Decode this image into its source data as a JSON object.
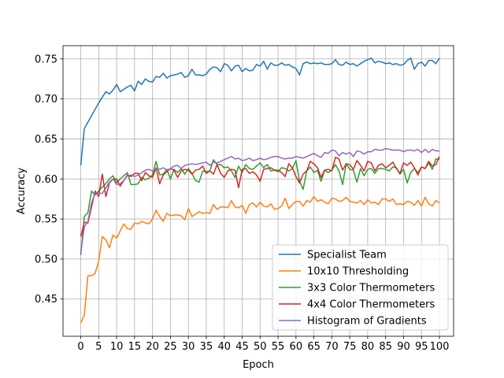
{
  "chart_data": {
    "type": "line",
    "title": "",
    "xlabel": "Epoch",
    "ylabel": "Accuracy",
    "xlim": [
      -4.95,
      103.95
    ],
    "ylim": [
      0.4035,
      0.7665
    ],
    "xticks": [
      0,
      5,
      10,
      15,
      20,
      25,
      30,
      35,
      40,
      45,
      50,
      55,
      60,
      65,
      70,
      75,
      80,
      85,
      90,
      95,
      100
    ],
    "yticks": [
      0.45,
      0.5,
      0.55,
      0.6,
      0.65,
      0.7,
      0.75
    ],
    "ytick_labels": [
      "0.45",
      "0.50",
      "0.55",
      "0.60",
      "0.65",
      "0.70",
      "0.75"
    ],
    "grid": true,
    "legend_position": "lower-right",
    "series": [
      {
        "name": "Specialist Team",
        "color": "#1f77b4",
        "values": [
          0.617,
          0.663,
          0.671,
          0.679,
          0.687,
          0.695,
          0.702,
          0.709,
          0.706,
          0.711,
          0.718,
          0.709,
          0.712,
          0.715,
          0.717,
          0.71,
          0.722,
          0.718,
          0.725,
          0.722,
          0.721,
          0.728,
          0.727,
          0.732,
          0.726,
          0.729,
          0.73,
          0.731,
          0.733,
          0.727,
          0.729,
          0.737,
          0.73,
          0.73,
          0.729,
          0.731,
          0.737,
          0.74,
          0.739,
          0.734,
          0.744,
          0.742,
          0.735,
          0.741,
          0.742,
          0.734,
          0.738,
          0.735,
          0.736,
          0.743,
          0.741,
          0.747,
          0.737,
          0.745,
          0.742,
          0.742,
          0.745,
          0.742,
          0.743,
          0.74,
          0.738,
          0.73,
          0.744,
          0.746,
          0.744,
          0.745,
          0.744,
          0.745,
          0.743,
          0.743,
          0.744,
          0.749,
          0.743,
          0.742,
          0.746,
          0.743,
          0.744,
          0.741,
          0.744,
          0.747,
          0.749,
          0.751,
          0.745,
          0.747,
          0.746,
          0.744,
          0.745,
          0.743,
          0.744,
          0.742,
          0.743,
          0.748,
          0.751,
          0.737,
          0.744,
          0.746,
          0.741,
          0.748,
          0.748,
          0.744,
          0.751
        ]
      },
      {
        "name": "10x10 Thresholding",
        "color": "#ff7f0e",
        "values": [
          0.42,
          0.43,
          0.479,
          0.479,
          0.482,
          0.497,
          0.528,
          0.524,
          0.514,
          0.53,
          0.526,
          0.535,
          0.544,
          0.538,
          0.537,
          0.545,
          0.544,
          0.547,
          0.545,
          0.544,
          0.55,
          0.561,
          0.553,
          0.547,
          0.557,
          0.554,
          0.555,
          0.555,
          0.554,
          0.549,
          0.563,
          0.553,
          0.556,
          0.559,
          0.557,
          0.558,
          0.557,
          0.568,
          0.562,
          0.565,
          0.565,
          0.564,
          0.573,
          0.565,
          0.564,
          0.567,
          0.557,
          0.568,
          0.57,
          0.565,
          0.571,
          0.566,
          0.565,
          0.569,
          0.562,
          0.563,
          0.566,
          0.576,
          0.563,
          0.568,
          0.572,
          0.572,
          0.566,
          0.573,
          0.571,
          0.578,
          0.572,
          0.574,
          0.571,
          0.569,
          0.576,
          0.575,
          0.572,
          0.573,
          0.577,
          0.572,
          0.571,
          0.57,
          0.573,
          0.568,
          0.574,
          0.57,
          0.571,
          0.568,
          0.575,
          0.575,
          0.572,
          0.575,
          0.568,
          0.569,
          0.568,
          0.572,
          0.571,
          0.567,
          0.573,
          0.566,
          0.577,
          0.569,
          0.566,
          0.573,
          0.57
        ]
      },
      {
        "name": "3x3 Color Thermometers",
        "color": "#2ca02c",
        "values": [
          0.505,
          0.553,
          0.558,
          0.585,
          0.58,
          0.585,
          0.59,
          0.594,
          0.6,
          0.604,
          0.595,
          0.6,
          0.604,
          0.608,
          0.593,
          0.593,
          0.594,
          0.602,
          0.599,
          0.601,
          0.605,
          0.622,
          0.605,
          0.606,
          0.612,
          0.6,
          0.612,
          0.608,
          0.613,
          0.606,
          0.613,
          0.607,
          0.598,
          0.596,
          0.61,
          0.609,
          0.61,
          0.624,
          0.618,
          0.618,
          0.614,
          0.615,
          0.61,
          0.602,
          0.616,
          0.608,
          0.618,
          0.613,
          0.612,
          0.616,
          0.62,
          0.614,
          0.618,
          0.61,
          0.611,
          0.609,
          0.614,
          0.613,
          0.61,
          0.613,
          0.623,
          0.597,
          0.587,
          0.61,
          0.615,
          0.608,
          0.611,
          0.597,
          0.611,
          0.608,
          0.611,
          0.618,
          0.61,
          0.593,
          0.619,
          0.612,
          0.611,
          0.596,
          0.613,
          0.604,
          0.612,
          0.613,
          0.607,
          0.613,
          0.613,
          0.612,
          0.61,
          0.615,
          0.614,
          0.606,
          0.612,
          0.595,
          0.608,
          0.613,
          0.608,
          0.615,
          0.613,
          0.62,
          0.612,
          0.625,
          0.625
        ]
      },
      {
        "name": "4x4 Color Thermometers",
        "color": "#d62728",
        "values": [
          0.528,
          0.546,
          0.545,
          0.565,
          0.585,
          0.578,
          0.606,
          0.578,
          0.595,
          0.6,
          0.6,
          0.591,
          0.598,
          0.605,
          0.603,
          0.607,
          0.607,
          0.598,
          0.608,
          0.604,
          0.602,
          0.614,
          0.594,
          0.605,
          0.609,
          0.613,
          0.611,
          0.602,
          0.61,
          0.612,
          0.611,
          0.606,
          0.611,
          0.612,
          0.616,
          0.607,
          0.61,
          0.606,
          0.618,
          0.607,
          0.602,
          0.61,
          0.612,
          0.611,
          0.589,
          0.612,
          0.613,
          0.607,
          0.609,
          0.605,
          0.597,
          0.612,
          0.613,
          0.614,
          0.611,
          0.611,
          0.608,
          0.603,
          0.619,
          0.614,
          0.603,
          0.595,
          0.606,
          0.61,
          0.622,
          0.619,
          0.614,
          0.602,
          0.611,
          0.612,
          0.61,
          0.627,
          0.625,
          0.611,
          0.619,
          0.618,
          0.612,
          0.623,
          0.617,
          0.61,
          0.622,
          0.62,
          0.61,
          0.617,
          0.619,
          0.614,
          0.617,
          0.621,
          0.613,
          0.607,
          0.62,
          0.617,
          0.621,
          0.614,
          0.605,
          0.615,
          0.613,
          0.622,
          0.616,
          0.618,
          0.628
        ]
      },
      {
        "name": "Histogram of Gradients",
        "color": "#9467bd",
        "values": [
          0.508,
          0.54,
          0.547,
          0.57,
          0.582,
          0.582,
          0.582,
          0.589,
          0.596,
          0.6,
          0.593,
          0.594,
          0.598,
          0.604,
          0.605,
          0.603,
          0.605,
          0.608,
          0.611,
          0.612,
          0.61,
          0.613,
          0.612,
          0.614,
          0.611,
          0.613,
          0.616,
          0.617,
          0.613,
          0.617,
          0.618,
          0.619,
          0.618,
          0.619,
          0.62,
          0.621,
          0.617,
          0.621,
          0.62,
          0.622,
          0.624,
          0.626,
          0.628,
          0.625,
          0.626,
          0.623,
          0.624,
          0.626,
          0.623,
          0.624,
          0.626,
          0.624,
          0.625,
          0.627,
          0.628,
          0.628,
          0.626,
          0.625,
          0.626,
          0.626,
          0.628,
          0.627,
          0.626,
          0.628,
          0.63,
          0.632,
          0.629,
          0.627,
          0.633,
          0.632,
          0.636,
          0.635,
          0.629,
          0.633,
          0.631,
          0.633,
          0.628,
          0.635,
          0.634,
          0.631,
          0.634,
          0.634,
          0.637,
          0.636,
          0.636,
          0.638,
          0.637,
          0.636,
          0.636,
          0.636,
          0.634,
          0.636,
          0.636,
          0.635,
          0.637,
          0.633,
          0.637,
          0.633,
          0.637,
          0.635,
          0.635
        ]
      }
    ]
  }
}
